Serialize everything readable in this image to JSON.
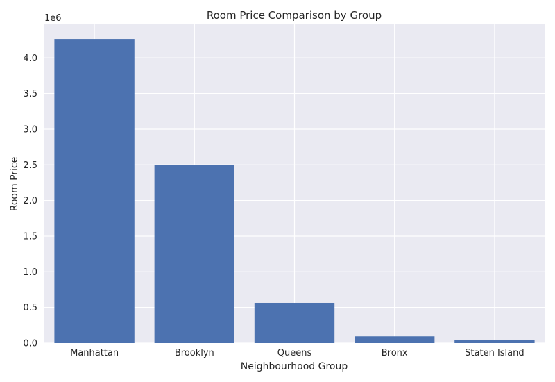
{
  "chart_data": {
    "type": "bar",
    "title": "Room Price Comparison by Group",
    "xlabel": "Neighbourhood Group",
    "ylabel": "Room Price",
    "offset_label": "1e6",
    "categories": [
      "Manhattan",
      "Brooklyn",
      "Queens",
      "Bronx",
      "Staten Island"
    ],
    "values": [
      4265000,
      2500000,
      565000,
      95000,
      43000
    ],
    "yticks": [
      0.0,
      0.5,
      1.0,
      1.5,
      2.0,
      2.5,
      3.0,
      3.5,
      4.0
    ],
    "ytick_labels": [
      "0.0",
      "0.5",
      "1.0",
      "1.5",
      "2.0",
      "2.5",
      "3.0",
      "3.5",
      "4.0"
    ],
    "ylim": [
      0,
      4480000
    ],
    "grid": true,
    "colors": {
      "bar": "#4c72b0",
      "plot_bg": "#eaeaf2",
      "grid": "#ffffff"
    }
  }
}
